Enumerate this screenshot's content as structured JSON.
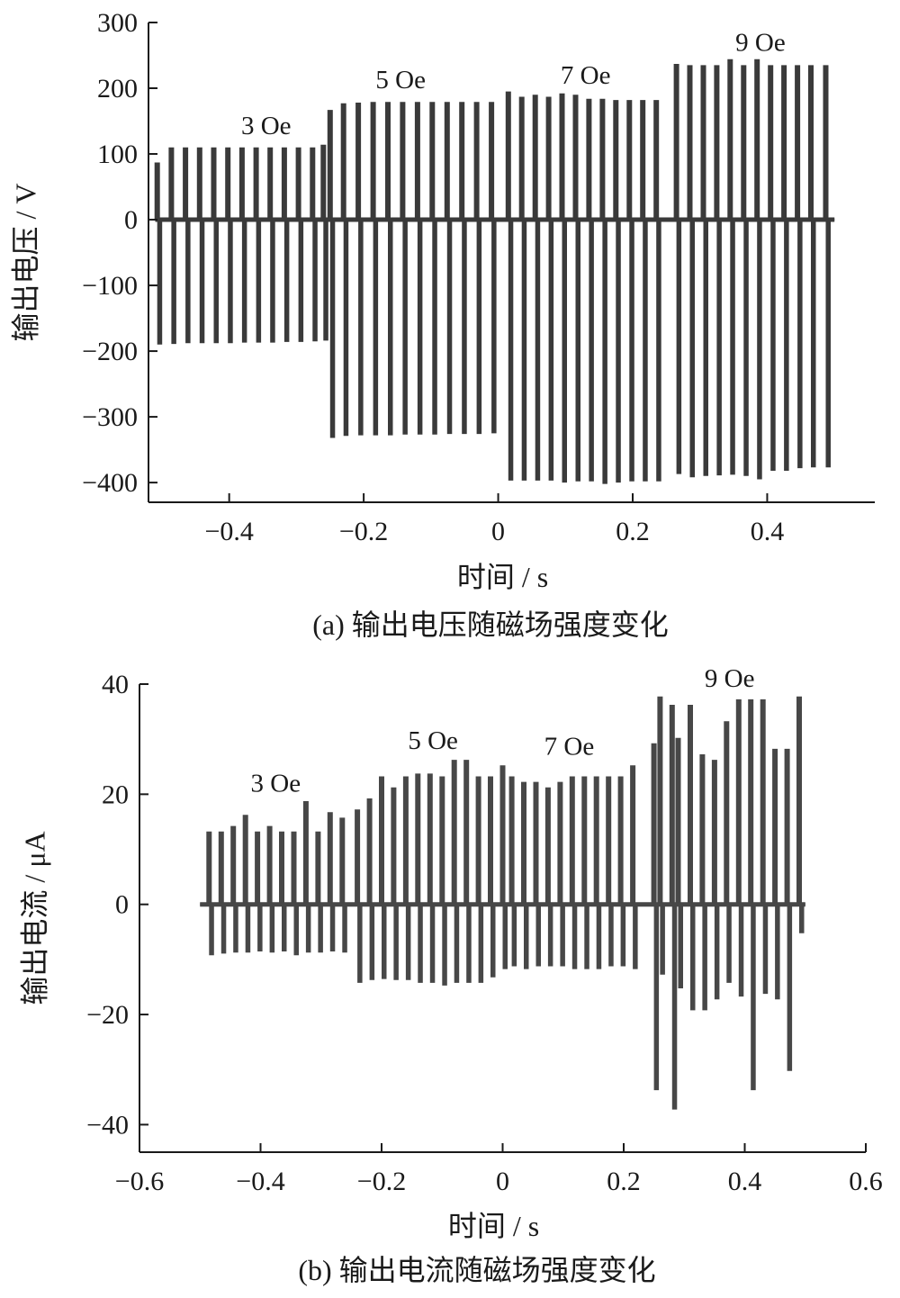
{
  "chart_data": [
    {
      "type": "line",
      "caption": "(a)  输出电压随磁场强度变化",
      "xlabel": "时间 / s",
      "ylabel": "输出电压 / V",
      "xlim": [
        -0.52,
        0.56
      ],
      "ylim": [
        -430,
        300
      ],
      "xticks": [
        -0.4,
        -0.2,
        0,
        0.2,
        0.4
      ],
      "yticks": [
        300,
        200,
        100,
        0,
        -100,
        -200,
        -300,
        -400
      ],
      "xtick_labels": [
        "−0.4",
        "−0.2",
        "0",
        "0.2",
        "0.4"
      ],
      "ytick_labels": [
        "300",
        "200",
        "100",
        "0",
        "−100",
        "−200",
        "−300",
        "−400"
      ],
      "trace_color": "#3a3a3a",
      "series": [
        {
          "x_start": -0.51,
          "x_end": -0.255,
          "pulses": [
            [
              -0.507,
              85,
              -188
            ],
            [
              -0.486,
              108,
              -187
            ],
            [
              -0.465,
              108,
              -186
            ],
            [
              -0.444,
              108,
              -186
            ],
            [
              -0.423,
              108,
              -186
            ],
            [
              -0.402,
              108,
              -186
            ],
            [
              -0.381,
              108,
              -185
            ],
            [
              -0.36,
              108,
              -185
            ],
            [
              -0.339,
              108,
              -185
            ],
            [
              -0.318,
              108,
              -184
            ],
            [
              -0.297,
              108,
              -184
            ],
            [
              -0.276,
              108,
              -183
            ],
            [
              -0.26,
              112,
              -182
            ]
          ]
        },
        {
          "x_start": -0.255,
          "x_end": 0.008,
          "pulses": [
            [
              -0.25,
              165,
              -330
            ],
            [
              -0.23,
              175,
              -327
            ],
            [
              -0.208,
              176,
              -326
            ],
            [
              -0.186,
              177,
              -326
            ],
            [
              -0.164,
              177,
              -326
            ],
            [
              -0.142,
              177,
              -325
            ],
            [
              -0.12,
              177,
              -325
            ],
            [
              -0.098,
              177,
              -325
            ],
            [
              -0.076,
              177,
              -324
            ],
            [
              -0.054,
              177,
              -324
            ],
            [
              -0.032,
              177,
              -324
            ],
            [
              -0.01,
              177,
              -323
            ]
          ]
        },
        {
          "x_start": 0.008,
          "x_end": 0.245,
          "pulses": [
            [
              0.015,
              193,
              -395
            ],
            [
              0.035,
              185,
              -395
            ],
            [
              0.055,
              188,
              -395
            ],
            [
              0.075,
              185,
              -395
            ],
            [
              0.095,
              190,
              -398
            ],
            [
              0.115,
              188,
              -396
            ],
            [
              0.135,
              182,
              -396
            ],
            [
              0.155,
              182,
              -400
            ],
            [
              0.175,
              180,
              -398
            ],
            [
              0.195,
              180,
              -396
            ],
            [
              0.215,
              180,
              -396
            ],
            [
              0.235,
              180,
              -396
            ]
          ]
        },
        {
          "x_start": 0.245,
          "x_end": 0.5,
          "pulses": [
            [
              0.265,
              235,
              -385
            ],
            [
              0.285,
              233,
              -390
            ],
            [
              0.305,
              233,
              -388
            ],
            [
              0.325,
              233,
              -387
            ],
            [
              0.345,
              242,
              -386
            ],
            [
              0.365,
              233,
              -388
            ],
            [
              0.385,
              242,
              -393
            ],
            [
              0.405,
              233,
              -380
            ],
            [
              0.425,
              233,
              -380
            ],
            [
              0.445,
              233,
              -376
            ],
            [
              0.465,
              233,
              -375
            ],
            [
              0.487,
              233,
              -375
            ]
          ]
        }
      ],
      "annotations": [
        {
          "text": "3 Oe",
          "x": -0.345,
          "y": 130
        },
        {
          "text": "5 Oe",
          "x": -0.145,
          "y": 200
        },
        {
          "text": "7 Oe",
          "x": 0.13,
          "y": 207
        },
        {
          "text": "9 Oe",
          "x": 0.39,
          "y": 257
        }
      ]
    },
    {
      "type": "line",
      "caption": "(b)  输出电流随磁场强度变化",
      "xlabel": "时间 / s",
      "ylabel": "输出电流 / μA",
      "xlim": [
        -0.6,
        0.6
      ],
      "ylim": [
        -45,
        40
      ],
      "xticks": [
        -0.6,
        -0.4,
        -0.2,
        0,
        0.2,
        0.4,
        0.6
      ],
      "yticks": [
        40,
        20,
        0,
        -20,
        -40
      ],
      "xtick_labels": [
        "−0.6",
        "−0.4",
        "−0.2",
        "0",
        "0.2",
        "0.4",
        "0.6"
      ],
      "ytick_labels": [
        "40",
        "20",
        "0",
        "−20",
        "−40"
      ],
      "trace_color": "#474747",
      "series": [
        {
          "x_start": -0.5,
          "x_end": -0.235,
          "pulses": [
            [
              -0.485,
              13,
              -9
            ],
            [
              -0.465,
              13,
              -8.7
            ],
            [
              -0.445,
              14,
              -8.5
            ],
            [
              -0.425,
              16,
              -8.5
            ],
            [
              -0.405,
              13,
              -8.3
            ],
            [
              -0.385,
              14,
              -8.5
            ],
            [
              -0.365,
              13,
              -8.3
            ],
            [
              -0.345,
              13,
              -9
            ],
            [
              -0.325,
              18.5,
              -8.5
            ],
            [
              -0.305,
              13,
              -8.5
            ],
            [
              -0.285,
              16.5,
              -8.3
            ],
            [
              -0.265,
              15.5,
              -8.5
            ]
          ]
        },
        {
          "x_start": -0.235,
          "x_end": 0.005,
          "pulses": [
            [
              -0.24,
              17,
              -14
            ],
            [
              -0.22,
              19,
              -13.5
            ],
            [
              -0.2,
              23,
              -13.3
            ],
            [
              -0.18,
              21,
              -13.5
            ],
            [
              -0.16,
              23,
              -13.5
            ],
            [
              -0.14,
              23.5,
              -14
            ],
            [
              -0.12,
              23.5,
              -14
            ],
            [
              -0.1,
              23,
              -14.5
            ],
            [
              -0.08,
              26,
              -14
            ],
            [
              -0.06,
              26,
              -14
            ],
            [
              -0.04,
              23,
              -14
            ],
            [
              -0.02,
              23,
              -13
            ]
          ]
        },
        {
          "x_start": 0.005,
          "x_end": 0.245,
          "pulses": [
            [
              0.0,
              25,
              -11.5
            ],
            [
              0.015,
              23,
              -11
            ],
            [
              0.035,
              22,
              -11.5
            ],
            [
              0.055,
              22,
              -11
            ],
            [
              0.075,
              21,
              -11
            ],
            [
              0.095,
              22,
              -11
            ],
            [
              0.115,
              23,
              -11.5
            ],
            [
              0.135,
              23,
              -11.5
            ],
            [
              0.155,
              23,
              -11.5
            ],
            [
              0.175,
              23,
              -11
            ],
            [
              0.195,
              23,
              -11
            ],
            [
              0.215,
              25,
              -11.5
            ]
          ]
        },
        {
          "x_start": 0.245,
          "x_end": 0.5,
          "pulses": [
            [
              0.25,
              29,
              -33.5
            ],
            [
              0.26,
              37.5,
              -12.5
            ],
            [
              0.28,
              36,
              -37
            ],
            [
              0.29,
              30,
              -15
            ],
            [
              0.31,
              36,
              -19
            ],
            [
              0.33,
              27,
              -19
            ],
            [
              0.35,
              26,
              -17
            ],
            [
              0.37,
              33,
              -14
            ],
            [
              0.39,
              37,
              -16.5
            ],
            [
              0.41,
              37,
              -33.5
            ],
            [
              0.43,
              37,
              -16
            ],
            [
              0.45,
              28,
              -17
            ],
            [
              0.47,
              28,
              -30
            ],
            [
              0.49,
              37.5,
              -5
            ]
          ]
        }
      ],
      "annotations": [
        {
          "text": "3 Oe",
          "x": -0.375,
          "y": 20.5
        },
        {
          "text": "5 Oe",
          "x": -0.115,
          "y": 28.2
        },
        {
          "text": "7 Oe",
          "x": 0.11,
          "y": 27.2
        },
        {
          "text": "9 Oe",
          "x": 0.375,
          "y": 39.5
        }
      ]
    }
  ]
}
